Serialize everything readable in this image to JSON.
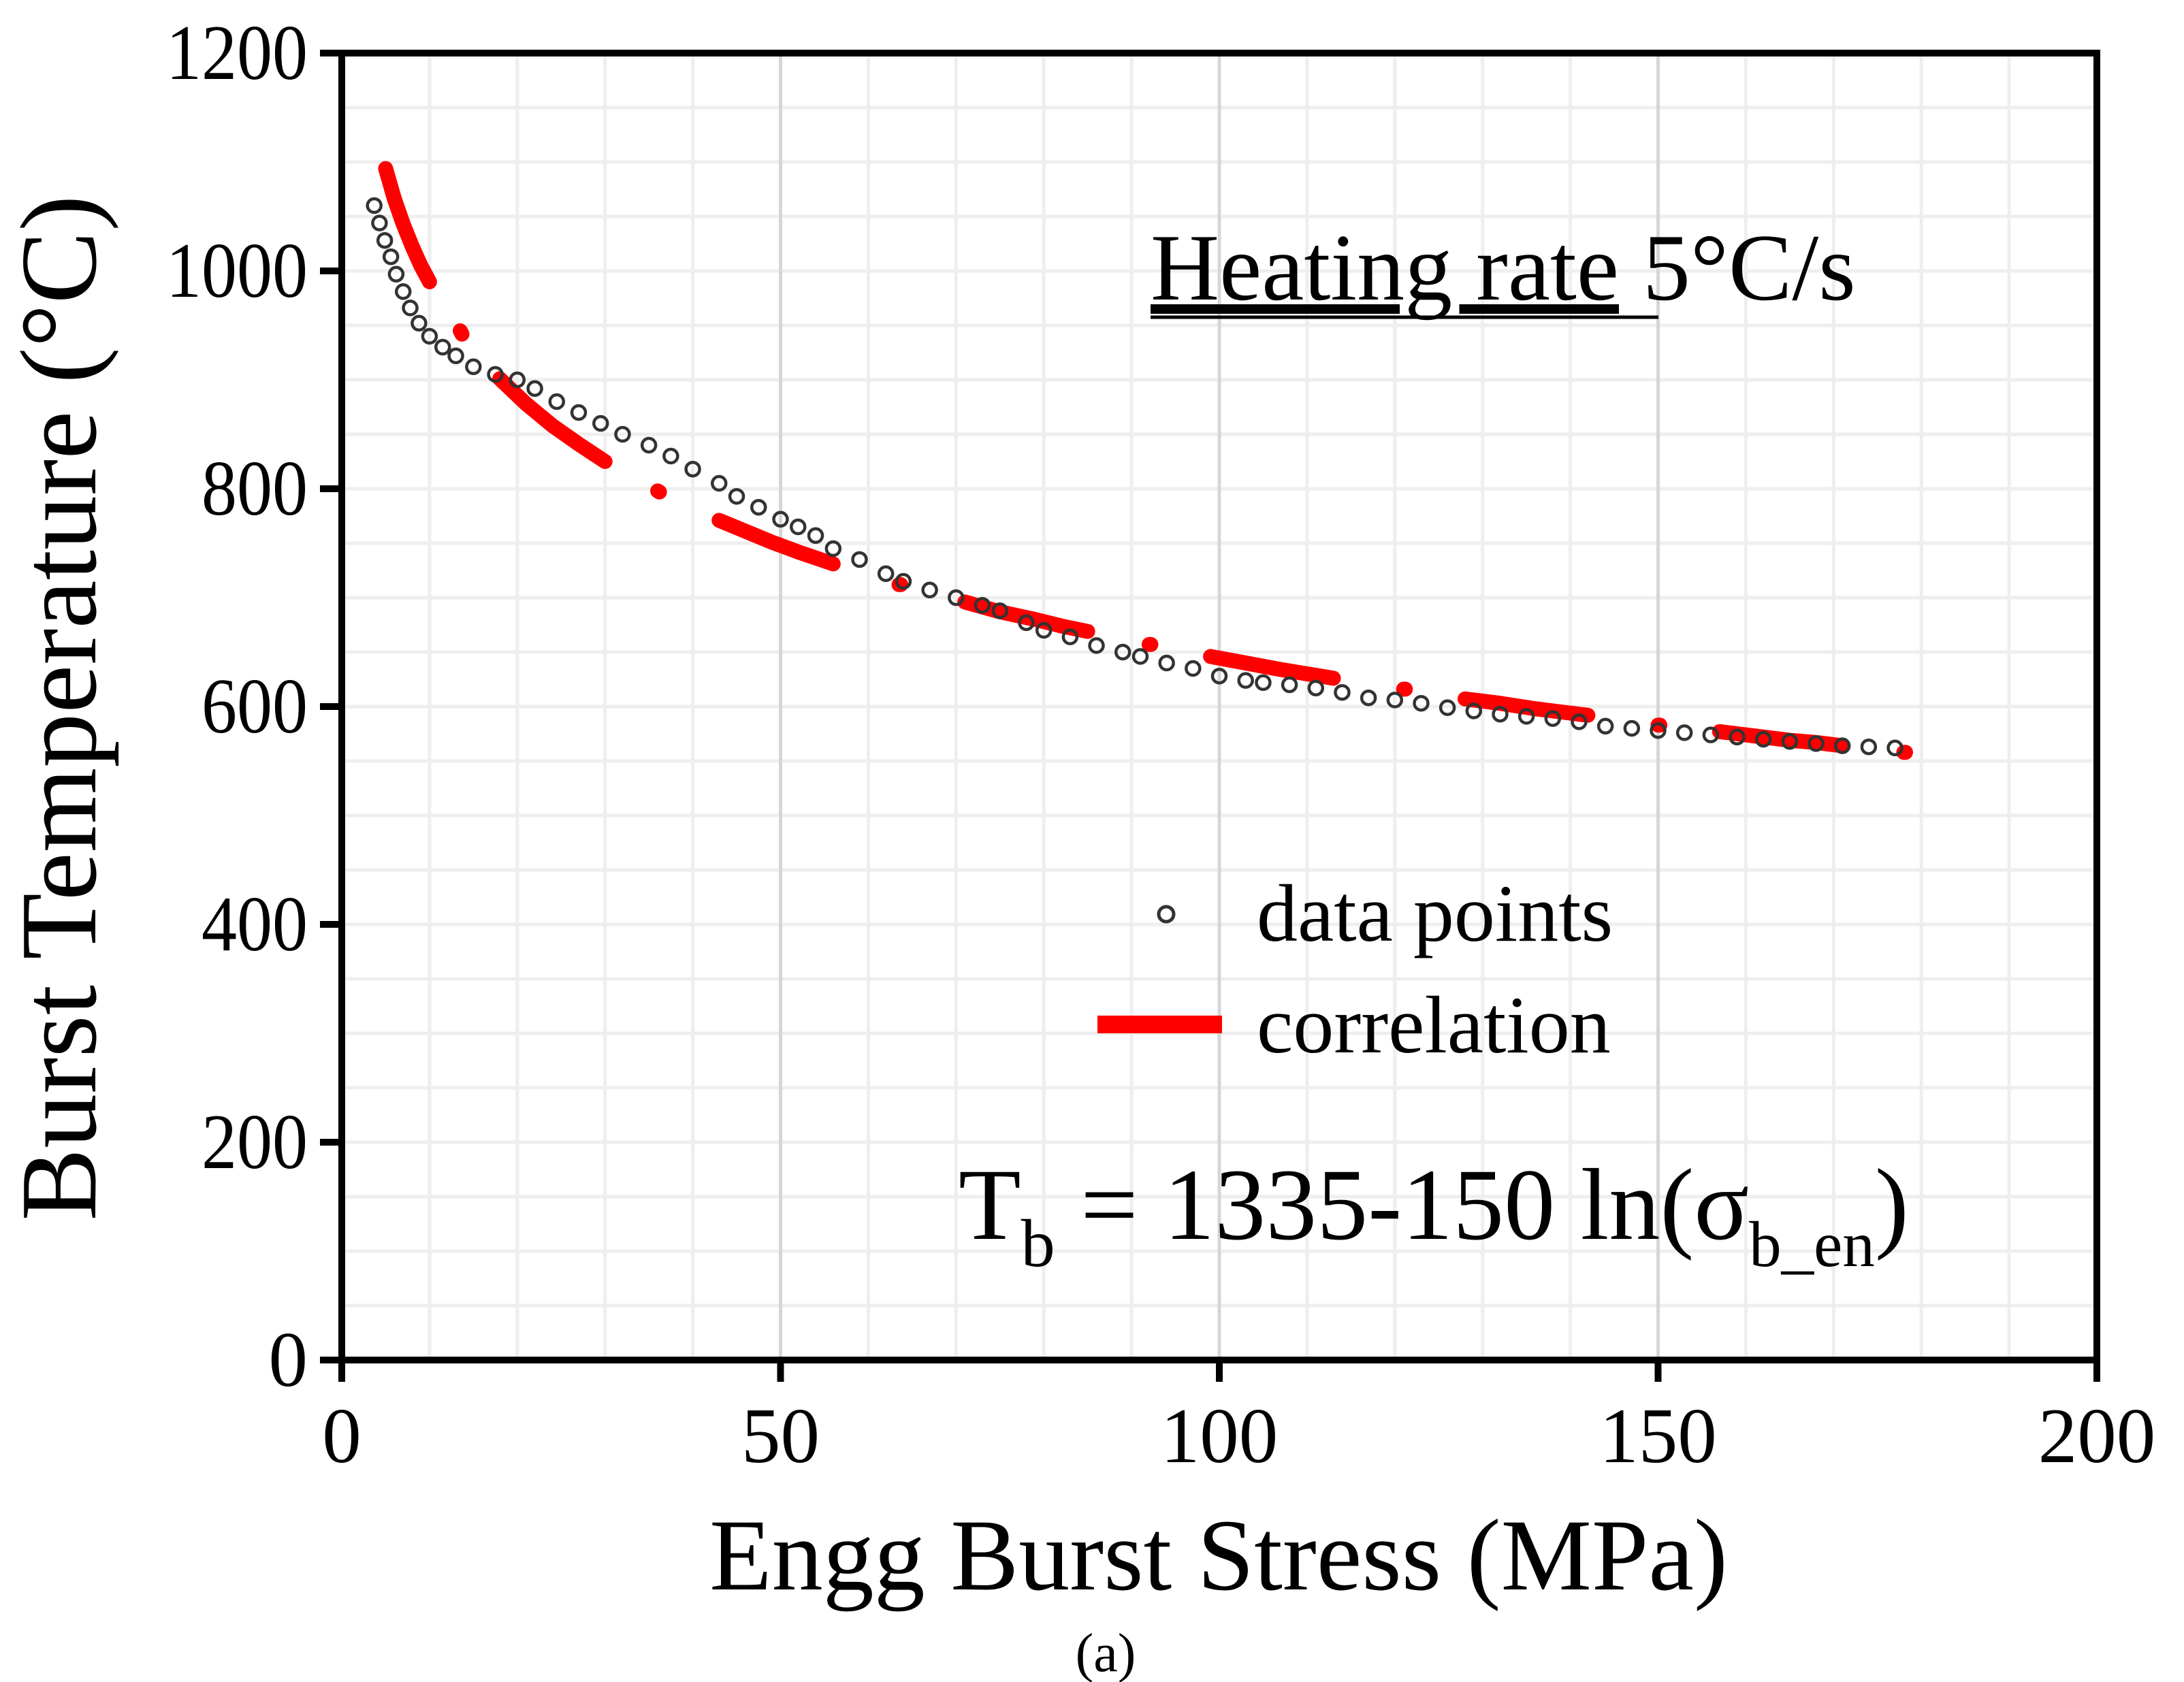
{
  "chart_data": {
    "type": "scatter",
    "xlabel": "Engg Burst Stress (MPa)",
    "ylabel": "Burst Temperature (°C)",
    "xlim": [
      0,
      200
    ],
    "ylim": [
      0,
      1200
    ],
    "xticks": [
      0,
      50,
      100,
      150,
      200
    ],
    "yticks": [
      0,
      200,
      400,
      600,
      800,
      1000,
      1200
    ],
    "grid": true,
    "annotation_title_underlined": "Heating rate",
    "annotation_title_rest": " 5°C/s",
    "equation": {
      "lhs": "T",
      "lhs_sub": "b",
      "mid": " = 1335-150 ln(",
      "sigma": "σ",
      "sigma_sub": "b_en",
      "close": ")"
    },
    "caption": "(a)",
    "legend": {
      "placement": "center-right",
      "entries": [
        {
          "name": "data points",
          "marker": "open-circle"
        },
        {
          "name": "correlation",
          "marker": "thick-line"
        }
      ]
    },
    "colors": {
      "data": "#333333",
      "correlation": "#ff0000",
      "grid_minor": "#eeeeee",
      "grid_major": "#d6d6d6"
    },
    "series": [
      {
        "name": "data points",
        "kind": "scatter",
        "points": [
          [
            3.7,
            1060
          ],
          [
            4.3,
            1044
          ],
          [
            4.9,
            1028
          ],
          [
            5.6,
            1013
          ],
          [
            6.2,
            997
          ],
          [
            7.0,
            981
          ],
          [
            7.8,
            966
          ],
          [
            8.8,
            952
          ],
          [
            10,
            940
          ],
          [
            11.5,
            930
          ],
          [
            13,
            922
          ],
          [
            15,
            912
          ],
          [
            17.5,
            905
          ],
          [
            20,
            900
          ],
          [
            22,
            892
          ],
          [
            24.5,
            880
          ],
          [
            27,
            870
          ],
          [
            29.5,
            860
          ],
          [
            32,
            850
          ],
          [
            35,
            840
          ],
          [
            37.5,
            830
          ],
          [
            40,
            818
          ],
          [
            43,
            805
          ],
          [
            45,
            793
          ],
          [
            47.5,
            783
          ],
          [
            50,
            772
          ],
          [
            52,
            765
          ],
          [
            54,
            757
          ],
          [
            56,
            745
          ],
          [
            59,
            735
          ],
          [
            62,
            722
          ],
          [
            64,
            715
          ],
          [
            67,
            707
          ],
          [
            70,
            700
          ],
          [
            73,
            693
          ],
          [
            75,
            688
          ],
          [
            78,
            677
          ],
          [
            80,
            670
          ],
          [
            83,
            664
          ],
          [
            86,
            656
          ],
          [
            89,
            650
          ],
          [
            91,
            646
          ],
          [
            94,
            640
          ],
          [
            97,
            635
          ],
          [
            100,
            628
          ],
          [
            103,
            624
          ],
          [
            105,
            622
          ],
          [
            108,
            620
          ],
          [
            111,
            617
          ],
          [
            114,
            613
          ],
          [
            117,
            608
          ],
          [
            120,
            606
          ],
          [
            123,
            603
          ],
          [
            126,
            599
          ],
          [
            129,
            596
          ],
          [
            132,
            593
          ],
          [
            135,
            591
          ],
          [
            138,
            589
          ],
          [
            141,
            586
          ],
          [
            144,
            582
          ],
          [
            147,
            580
          ],
          [
            150,
            578
          ],
          [
            153,
            576
          ],
          [
            156,
            574
          ],
          [
            159,
            572
          ],
          [
            162,
            570
          ],
          [
            165,
            568
          ],
          [
            168,
            566
          ],
          [
            171,
            564
          ],
          [
            174,
            563
          ],
          [
            177,
            562
          ]
        ]
      },
      {
        "name": "correlation",
        "kind": "segments",
        "segments": [
          [
            [
              5,
              1094
            ],
            [
              6,
              1066
            ],
            [
              7,
              1043
            ],
            [
              8,
              1023
            ],
            [
              9,
              1005
            ],
            [
              10,
              990
            ]
          ],
          [
            [
              13.5,
              945
            ],
            [
              13.7,
              942
            ]
          ],
          [
            [
              18,
              901
            ],
            [
              21,
              878
            ],
            [
              24,
              858
            ],
            [
              27,
              841
            ],
            [
              30,
              825
            ]
          ],
          [
            [
              36,
              798
            ],
            [
              36.2,
              797
            ]
          ],
          [
            [
              43,
              771
            ],
            [
              46,
              761
            ],
            [
              49,
              751
            ],
            [
              52,
              742
            ],
            [
              56,
              731
            ]
          ],
          [
            [
              63.5,
              712
            ],
            [
              63.7,
              712
            ]
          ],
          [
            [
              71,
              696
            ],
            [
              75,
              687
            ],
            [
              79,
              680
            ],
            [
              82,
              674
            ],
            [
              85,
              669
            ]
          ],
          [
            [
              92,
              657
            ],
            [
              92.2,
              657
            ]
          ],
          [
            [
              99,
              646
            ],
            [
              103,
              640
            ],
            [
              107,
              634
            ],
            [
              110,
              630
            ],
            [
              113,
              626
            ]
          ],
          [
            [
              121,
              616
            ],
            [
              121.2,
              616
            ]
          ],
          [
            [
              128,
              607
            ],
            [
              132,
              603
            ],
            [
              136,
              598
            ],
            [
              139,
              595
            ],
            [
              142,
              592
            ]
          ],
          [
            [
              150,
              583
            ],
            [
              150.2,
              583
            ]
          ],
          [
            [
              157,
              577
            ],
            [
              161,
              573
            ],
            [
              165,
              569
            ],
            [
              168,
              567
            ],
            [
              171,
              564
            ]
          ],
          [
            [
              178,
              558
            ],
            [
              178.2,
              558
            ]
          ]
        ]
      }
    ]
  }
}
